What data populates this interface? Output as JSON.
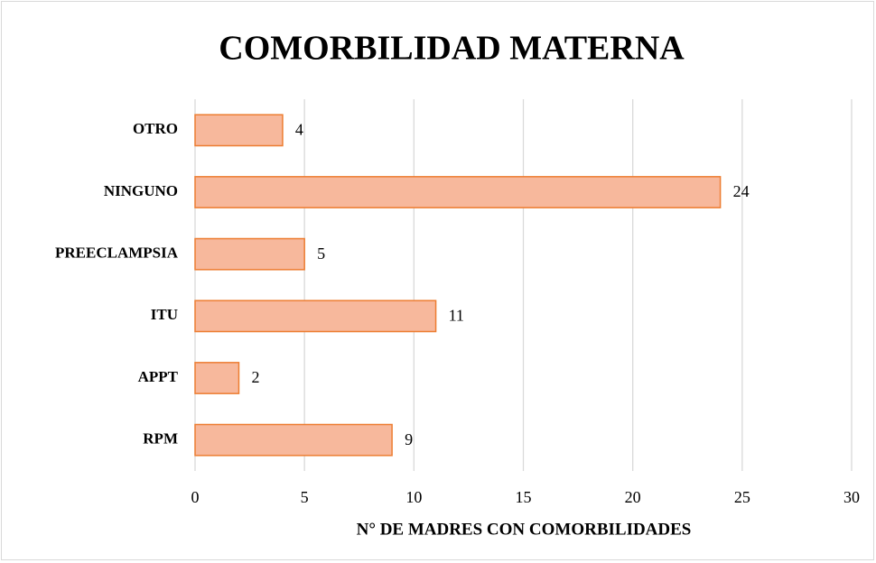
{
  "chart_data": {
    "type": "barh",
    "title": "COMORBILIDAD MATERNA",
    "xlabel": "N° DE MADRES CON COMORBILIDADES",
    "categories": [
      "OTRO",
      "NINGUNO",
      "PREECLAMPSIA",
      "ITU",
      "APPT",
      "RPM"
    ],
    "values": [
      4,
      24,
      5,
      11,
      2,
      9
    ],
    "color": "#f7b89c",
    "edgecolor": "#ed7d31",
    "xlim": [
      0,
      30
    ],
    "xticks": [
      0,
      5,
      10,
      15,
      20,
      25,
      30
    ],
    "grid": true
  }
}
